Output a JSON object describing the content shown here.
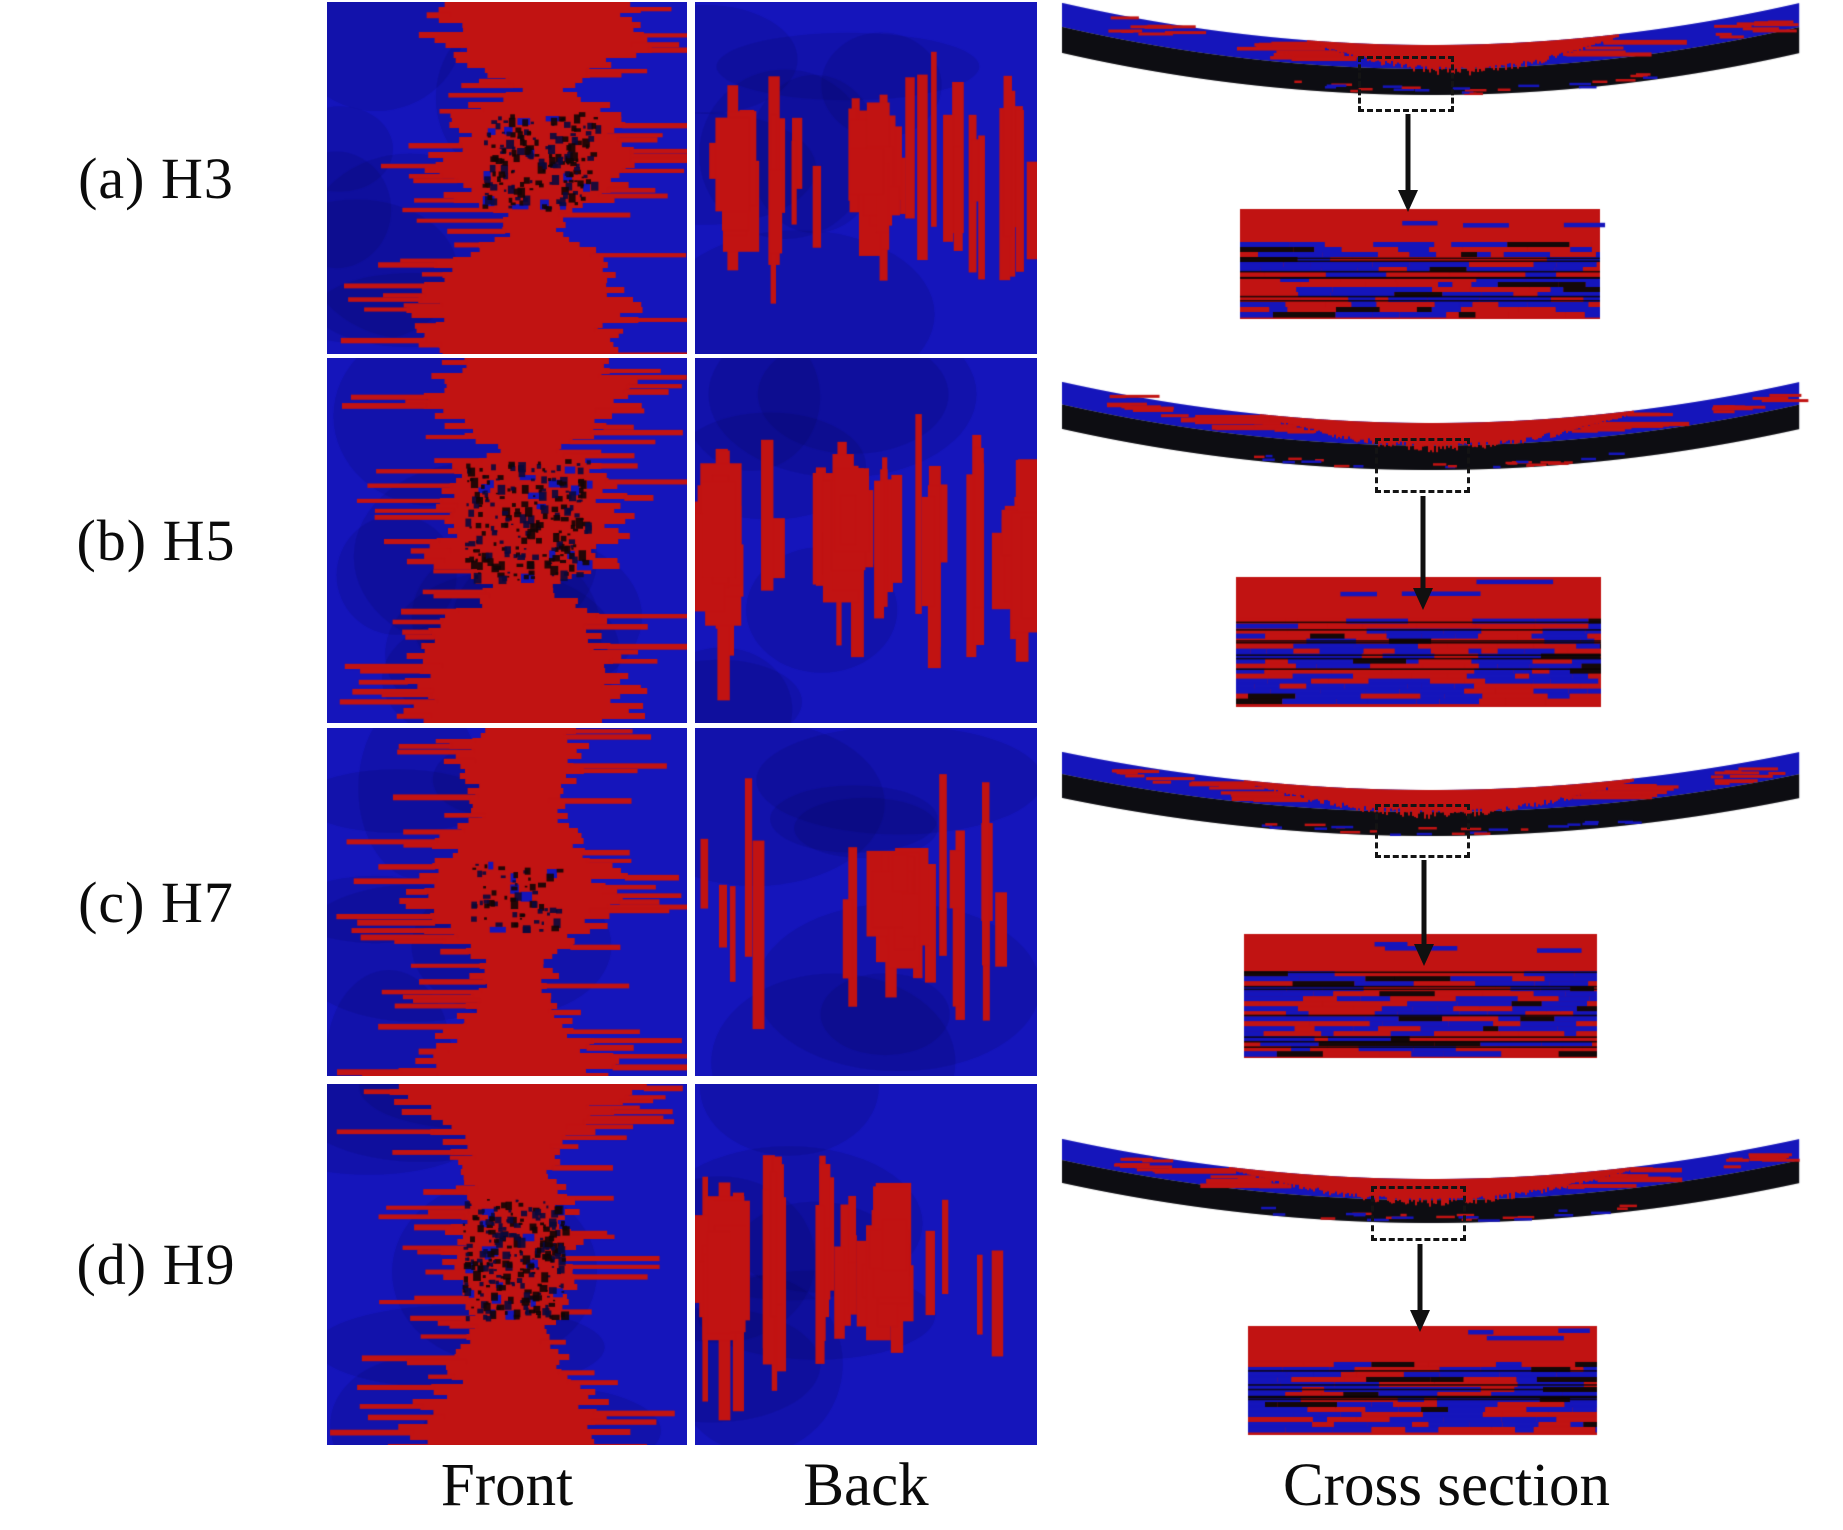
{
  "rows": [
    {
      "label": "(a) H3",
      "specimen": "H3",
      "front_pattern": "central vertical red damage band with speckled mid-span damage zone on blue face",
      "back_pattern": "band of vertical red damage strips across mid-height of blue face",
      "cross_section_pattern": "sagging bent laminate, red tensile damage at mid-span top, black crushed lower plies, dashed magnified region with enlarged inset below"
    },
    {
      "label": "(b) H5",
      "specimen": "H5",
      "front_pattern": "central vertical red damage band with large speckled mid-span blob on blue face",
      "back_pattern": "vertical red strips with large red zones at left and right edges",
      "cross_section_pattern": "sagging bent laminate, red tensile damage at mid-span top, black crushed lower plies, dashed magnified region with enlarged inset below"
    },
    {
      "label": "(c) H7",
      "specimen": "H7",
      "front_pattern": "continuous red vertical band widening into smooth central blob on blue face",
      "back_pattern": "sparse thin vertical red strips with cluster right of centre",
      "cross_section_pattern": "sagging bent laminate, red tensile damage at mid-span top, black crushed lower plies, dashed magnified region with enlarged inset below"
    },
    {
      "label": "(d) H9",
      "specimen": "H9",
      "front_pattern": "hourglass-shaped red band with blocky speckled centre on blue face",
      "back_pattern": "large red damage mass at left edge with vertical strips toward centre",
      "cross_section_pattern": "sagging bent laminate, red tensile damage at mid-span top, black crushed lower plies, dashed magnified region with enlarged inset below"
    }
  ],
  "column_captions": {
    "front": "Front",
    "back": "Back",
    "cross_section": "Cross section"
  },
  "icons": {
    "arrow": "arrow-down",
    "magnified_region": "dashed-rectangle"
  },
  "colors": {
    "damage_red": "#c11312",
    "matrix_blue": "#1515bb",
    "crushed_black": "#0d0d12",
    "speckle_dark": "#160606",
    "page_background": "#ffffff",
    "text_color": "#0b0b0b"
  }
}
